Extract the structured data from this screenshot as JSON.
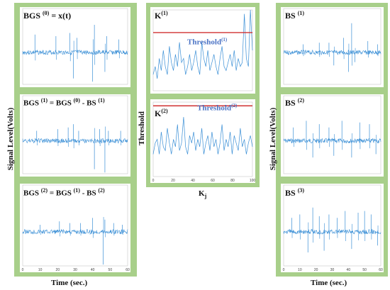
{
  "left": {
    "ylabel": "Signal Level(Volts)",
    "xlabel": "Time (sec.)",
    "panels": [
      {
        "label_pre": "BGS ",
        "label_sup": "(0)",
        "label_post": " = x(t)"
      },
      {
        "label_pre": "BGS ",
        "label_sup": "(1)",
        "label_post": " = BGS ",
        "label_sup2": "(0)",
        "label_post2": "  -  BS ",
        "label_sup3": "(1)"
      },
      {
        "label_pre": "BGS ",
        "label_sup": "(2)",
        "label_post": " = BGS ",
        "label_sup2": "(1)",
        "label_post2": "  -  BS ",
        "label_sup3": "(2)"
      }
    ]
  },
  "middle": {
    "ylabel": "Threshold",
    "xlabel": "K",
    "xlabel_sub": "j",
    "panels": [
      {
        "label": "K",
        "label_sup": "(1)",
        "threshold_label": "Threshold",
        "threshold_sup": "(1)"
      },
      {
        "label": "K",
        "label_sup": "(2)",
        "threshold_label": "Threshold",
        "threshold_sup": "(2)"
      }
    ]
  },
  "right": {
    "ylabel": "Signal Level(Volts)",
    "xlabel": "Time (sec.)",
    "panels": [
      {
        "label": "BS ",
        "label_sup": "(1)"
      },
      {
        "label": "BS ",
        "label_sup": "(2)"
      },
      {
        "label": "BS ",
        "label_sup": "(3)"
      }
    ]
  },
  "colors": {
    "signal": "#3a8fd6",
    "threshold": "#d03030",
    "frame": "#a8cf8a",
    "threshold_text": "#4a72c4"
  },
  "chart_data": [
    {
      "type": "line",
      "id": "time-signals",
      "x_ticks": [
        "0",
        "10",
        "20",
        "30",
        "40",
        "50",
        "60"
      ],
      "xlim": [
        0,
        60
      ],
      "series": [
        {
          "spikes": [
            [
              7,
              0.55
            ],
            [
              19,
              0.5
            ],
            [
              27,
              0.6
            ],
            [
              29,
              -0.8
            ],
            [
              31,
              0.45
            ],
            [
              40,
              -0.9
            ],
            [
              41,
              0.85
            ],
            [
              47,
              -0.6
            ],
            [
              48,
              0.5
            ],
            [
              55,
              0.4
            ]
          ]
        },
        {
          "spikes": [
            [
              8,
              0.3
            ],
            [
              20,
              0.35
            ],
            [
              26,
              0.4
            ],
            [
              29,
              0.5
            ],
            [
              32,
              0.3
            ],
            [
              41,
              -0.85
            ],
            [
              44,
              0.35
            ],
            [
              47,
              -0.95
            ],
            [
              49,
              0.3
            ],
            [
              56,
              0.3
            ]
          ]
        },
        {
          "spikes": [
            [
              10,
              0.2
            ],
            [
              21,
              0.3
            ],
            [
              27,
              0.25
            ],
            [
              33,
              0.25
            ],
            [
              40,
              0.4
            ],
            [
              46,
              -0.95
            ],
            [
              47,
              0.35
            ],
            [
              52,
              0.25
            ],
            [
              57,
              0.2
            ]
          ]
        },
        {
          "spikes": [
            [
              12,
              0.25
            ],
            [
              22,
              0.3
            ],
            [
              28,
              0.3
            ],
            [
              31,
              -0.4
            ],
            [
              37,
              0.45
            ],
            [
              40,
              -0.6
            ],
            [
              42,
              0.9
            ],
            [
              44,
              -0.3
            ],
            [
              52,
              0.35
            ],
            [
              58,
              0.25
            ]
          ]
        },
        {
          "spikes": [
            [
              6,
              0.4
            ],
            [
              14,
              0.6
            ],
            [
              18,
              -0.5
            ],
            [
              22,
              0.5
            ],
            [
              28,
              0.4
            ],
            [
              31,
              -0.45
            ],
            [
              36,
              0.6
            ],
            [
              42,
              -0.5
            ],
            [
              47,
              0.55
            ],
            [
              53,
              0.5
            ],
            [
              57,
              -0.4
            ]
          ]
        },
        {
          "spikes": [
            [
              5,
              0.4
            ],
            [
              10,
              0.5
            ],
            [
              15,
              -0.6
            ],
            [
              18,
              0.7
            ],
            [
              22,
              0.45
            ],
            [
              25,
              -0.55
            ],
            [
              28,
              0.5
            ],
            [
              33,
              0.4
            ],
            [
              38,
              0.6
            ],
            [
              42,
              -0.5
            ],
            [
              46,
              0.55
            ],
            [
              50,
              0.6
            ],
            [
              54,
              0.5
            ],
            [
              58,
              -0.4
            ]
          ]
        }
      ]
    },
    {
      "type": "line",
      "id": "kurtosis",
      "x_ticks": [
        "0",
        "20",
        "40",
        "60",
        "80",
        "100"
      ],
      "xlim": [
        0,
        100
      ],
      "ylim": [
        0,
        1
      ],
      "series": [
        {
          "name": "K(1)",
          "threshold": 0.72,
          "values": [
            0.2,
            0.3,
            0.15,
            0.4,
            0.25,
            0.5,
            0.3,
            0.2,
            0.55,
            0.35,
            0.25,
            0.45,
            0.3,
            0.6,
            0.35,
            0.4,
            0.2,
            0.3,
            0.45,
            0.25,
            0.35,
            0.5,
            0.3,
            0.2,
            0.6,
            0.4,
            0.3,
            0.5,
            0.25,
            0.35,
            0.45,
            0.3,
            0.2,
            0.4,
            0.55,
            0.3,
            0.25,
            0.35,
            0.45,
            0.3,
            0.5,
            0.25,
            0.4,
            0.3,
            0.35,
            0.95,
            0.4,
            0.3,
            1.0,
            0.5
          ]
        },
        {
          "name": "K(2)",
          "threshold": 0.95,
          "values": [
            0.3,
            0.45,
            0.5,
            0.3,
            0.6,
            0.4,
            0.35,
            0.65,
            0.45,
            0.3,
            0.5,
            0.4,
            0.7,
            0.35,
            0.45,
            0.8,
            0.4,
            0.3,
            0.55,
            0.45,
            0.6,
            0.35,
            0.5,
            0.4,
            0.65,
            0.3,
            0.45,
            0.55,
            0.35,
            0.6,
            0.4,
            0.5,
            0.3,
            0.45,
            0.7,
            0.35,
            0.5,
            0.4,
            0.6,
            0.3,
            0.55,
            0.45,
            0.35,
            0.65,
            0.4,
            0.5,
            0.3,
            0.45,
            0.55,
            0.4
          ]
        }
      ]
    }
  ]
}
